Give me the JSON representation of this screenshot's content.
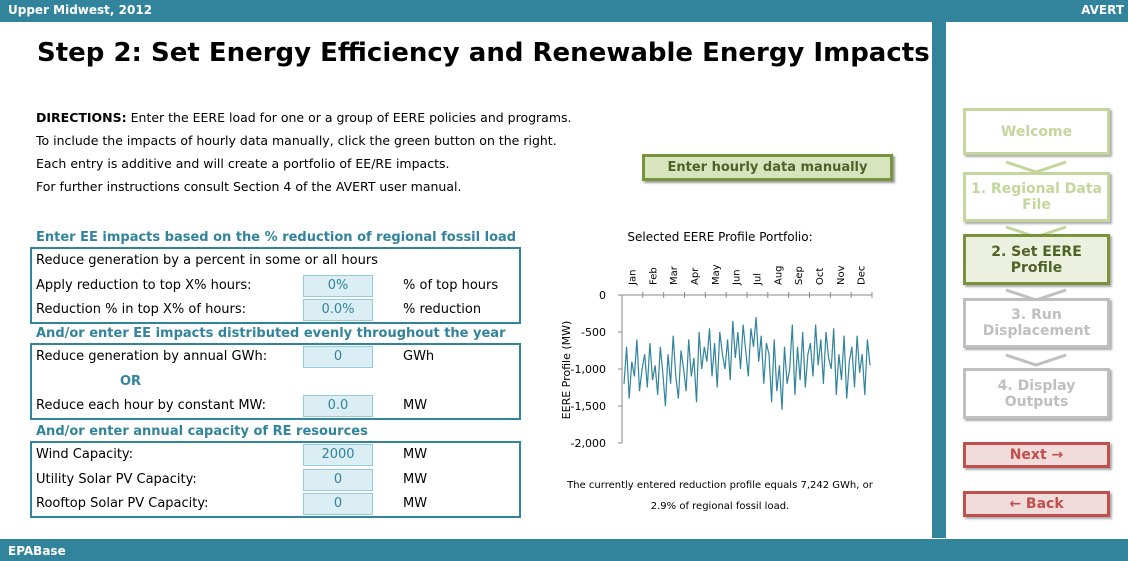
{
  "header": {
    "region": "Upper Midwest, 2012",
    "app": "AVERT"
  },
  "title": "Step 2: Set Energy Efficiency and Renewable Energy Impacts",
  "directions": {
    "label": "DIRECTIONS:",
    "lines": [
      "Enter the EERE load for one or a group of EERE policies and programs.",
      "To include the impacts of hourly data manually, click the green button on the right.",
      "Each entry is additive and will create a portfolio of EE/RE impacts.",
      "For further instructions consult Section 4 of the AVERT user manual."
    ]
  },
  "manual_button": "Enter hourly data manually",
  "sections": [
    {
      "heading": "Enter EE impacts based on the % reduction of regional fossil load",
      "rows": [
        {
          "label": "Reduce generation by a percent in some or all hours"
        },
        {
          "label": "Apply reduction to top X% hours:",
          "input": "0%",
          "unit": "% of top hours"
        },
        {
          "label": "Reduction % in top X% of hours:",
          "input": "0.0%",
          "unit": "% reduction"
        }
      ]
    },
    {
      "heading": "And/or enter EE impacts distributed evenly throughout the year",
      "rows": [
        {
          "label": "Reduce generation by annual GWh:",
          "input": "0",
          "unit": "GWh"
        },
        {
          "or": "OR"
        },
        {
          "label": "Reduce each hour by constant MW:",
          "input": "0.0",
          "unit": "MW"
        }
      ]
    },
    {
      "heading": "And/or enter annual capacity of RE resources",
      "rows": [
        {
          "label": "Wind Capacity:",
          "input": "2000",
          "unit": "MW"
        },
        {
          "label": "Utility Solar PV Capacity:",
          "input": "0",
          "unit": "MW"
        },
        {
          "label": "Rooftop Solar PV Capacity:",
          "input": "0",
          "unit": "MW"
        }
      ]
    }
  ],
  "chart_data": {
    "type": "line",
    "title": "Selected EERE Profile Portfolio:",
    "y_label": "EERE Profile (MW)",
    "months": [
      "Jan",
      "Feb",
      "Mar",
      "Apr",
      "May",
      "Jun",
      "Jul",
      "Aug",
      "Sep",
      "Oct",
      "Nov",
      "Dec"
    ],
    "color": "#31849b",
    "values": [
      -1200,
      -700,
      -1400,
      -900,
      -1100,
      -600,
      -1300,
      -1000,
      -800,
      -1250,
      -650,
      -1150,
      -950,
      -1350,
      -700,
      -1050,
      -1500,
      -800,
      -1200,
      -550,
      -1100,
      -1400,
      -750,
      -1000,
      -1300,
      -600,
      -1100,
      -850,
      -1450,
      -500,
      -1000,
      -700,
      -900,
      -450,
      -1100,
      -650,
      -1250,
      -500,
      -800,
      -1000,
      -600,
      -1150,
      -350,
      -850,
      -500,
      -1000,
      -400,
      -750,
      -1100,
      -450,
      -700,
      -300,
      -900,
      -550,
      -1200,
      -650,
      -800,
      -1450,
      -600,
      -1300,
      -950,
      -1550,
      -700,
      -1200,
      -1000,
      -400,
      -1350,
      -700,
      -1150,
      -500,
      -1250,
      -800,
      -650,
      -1100,
      -400,
      -950,
      -600,
      -1200,
      -500,
      -850,
      -1000,
      -450,
      -1350,
      -800,
      -1150,
      -550,
      -1400,
      -900,
      -700,
      -1250,
      -550,
      -1050,
      -800,
      -1350,
      -600,
      -950
    ],
    "ylim": [
      -2000,
      0
    ],
    "yticks": [
      0,
      -500,
      {
        "value": -1000,
        "label": "-1,000"
      },
      {
        "value": -1500,
        "label": "-1,500"
      },
      {
        "value": -2000,
        "label": "-2,000"
      }
    ]
  },
  "note": [
    "The currently entered reduction profile equals 7,242 GWh, or",
    "2.9% of regional fossil load."
  ],
  "nav": [
    "Welcome",
    "1. Regional Data File",
    "2. Set EERE Profile",
    "3. Run Displacement",
    "4. Display Outputs",
    "Next →",
    "← Back"
  ],
  "footer": "EPABase"
}
